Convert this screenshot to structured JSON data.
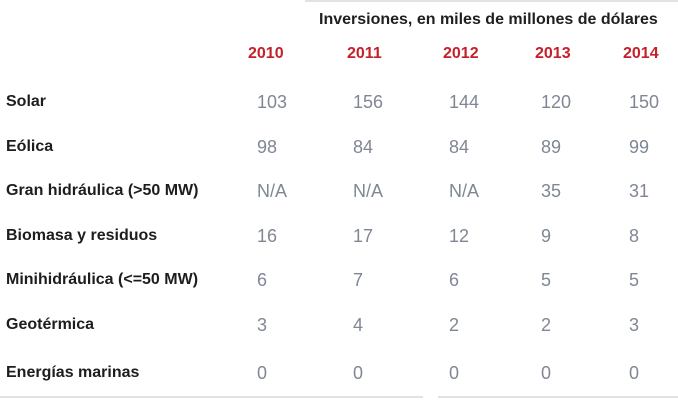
{
  "chart_data": {
    "type": "table",
    "title": "Inversiones, en miles de millones de dólares",
    "categories": [
      "2010",
      "2011",
      "2012",
      "2013",
      "2014"
    ],
    "rows": [
      {
        "label": "Solar",
        "values": [
          "103",
          "156",
          "144",
          "120",
          "150"
        ]
      },
      {
        "label": "Eólica",
        "values": [
          "98",
          "84",
          "84",
          "89",
          "99"
        ]
      },
      {
        "label": "Gran hidráulica (>50 MW)",
        "values": [
          "N/A",
          "N/A",
          "N/A",
          "35",
          "31"
        ]
      },
      {
        "label": "Biomasa y residuos",
        "values": [
          "16",
          "17",
          "12",
          "9",
          "8"
        ]
      },
      {
        "label": "Minihidráulica (<=50 MW)",
        "values": [
          "6",
          "7",
          "6",
          "5",
          "5"
        ]
      },
      {
        "label": "Geotérmica",
        "values": [
          "3",
          "4",
          "2",
          "2",
          "3"
        ]
      },
      {
        "label": "Energías marinas",
        "values": [
          "0",
          "0",
          "0",
          "0",
          "0"
        ]
      }
    ],
    "colors": {
      "year": "#c51f2a",
      "label": "#1d1d1d",
      "value": "#7f8794",
      "rule": "#e2e2e2"
    }
  }
}
